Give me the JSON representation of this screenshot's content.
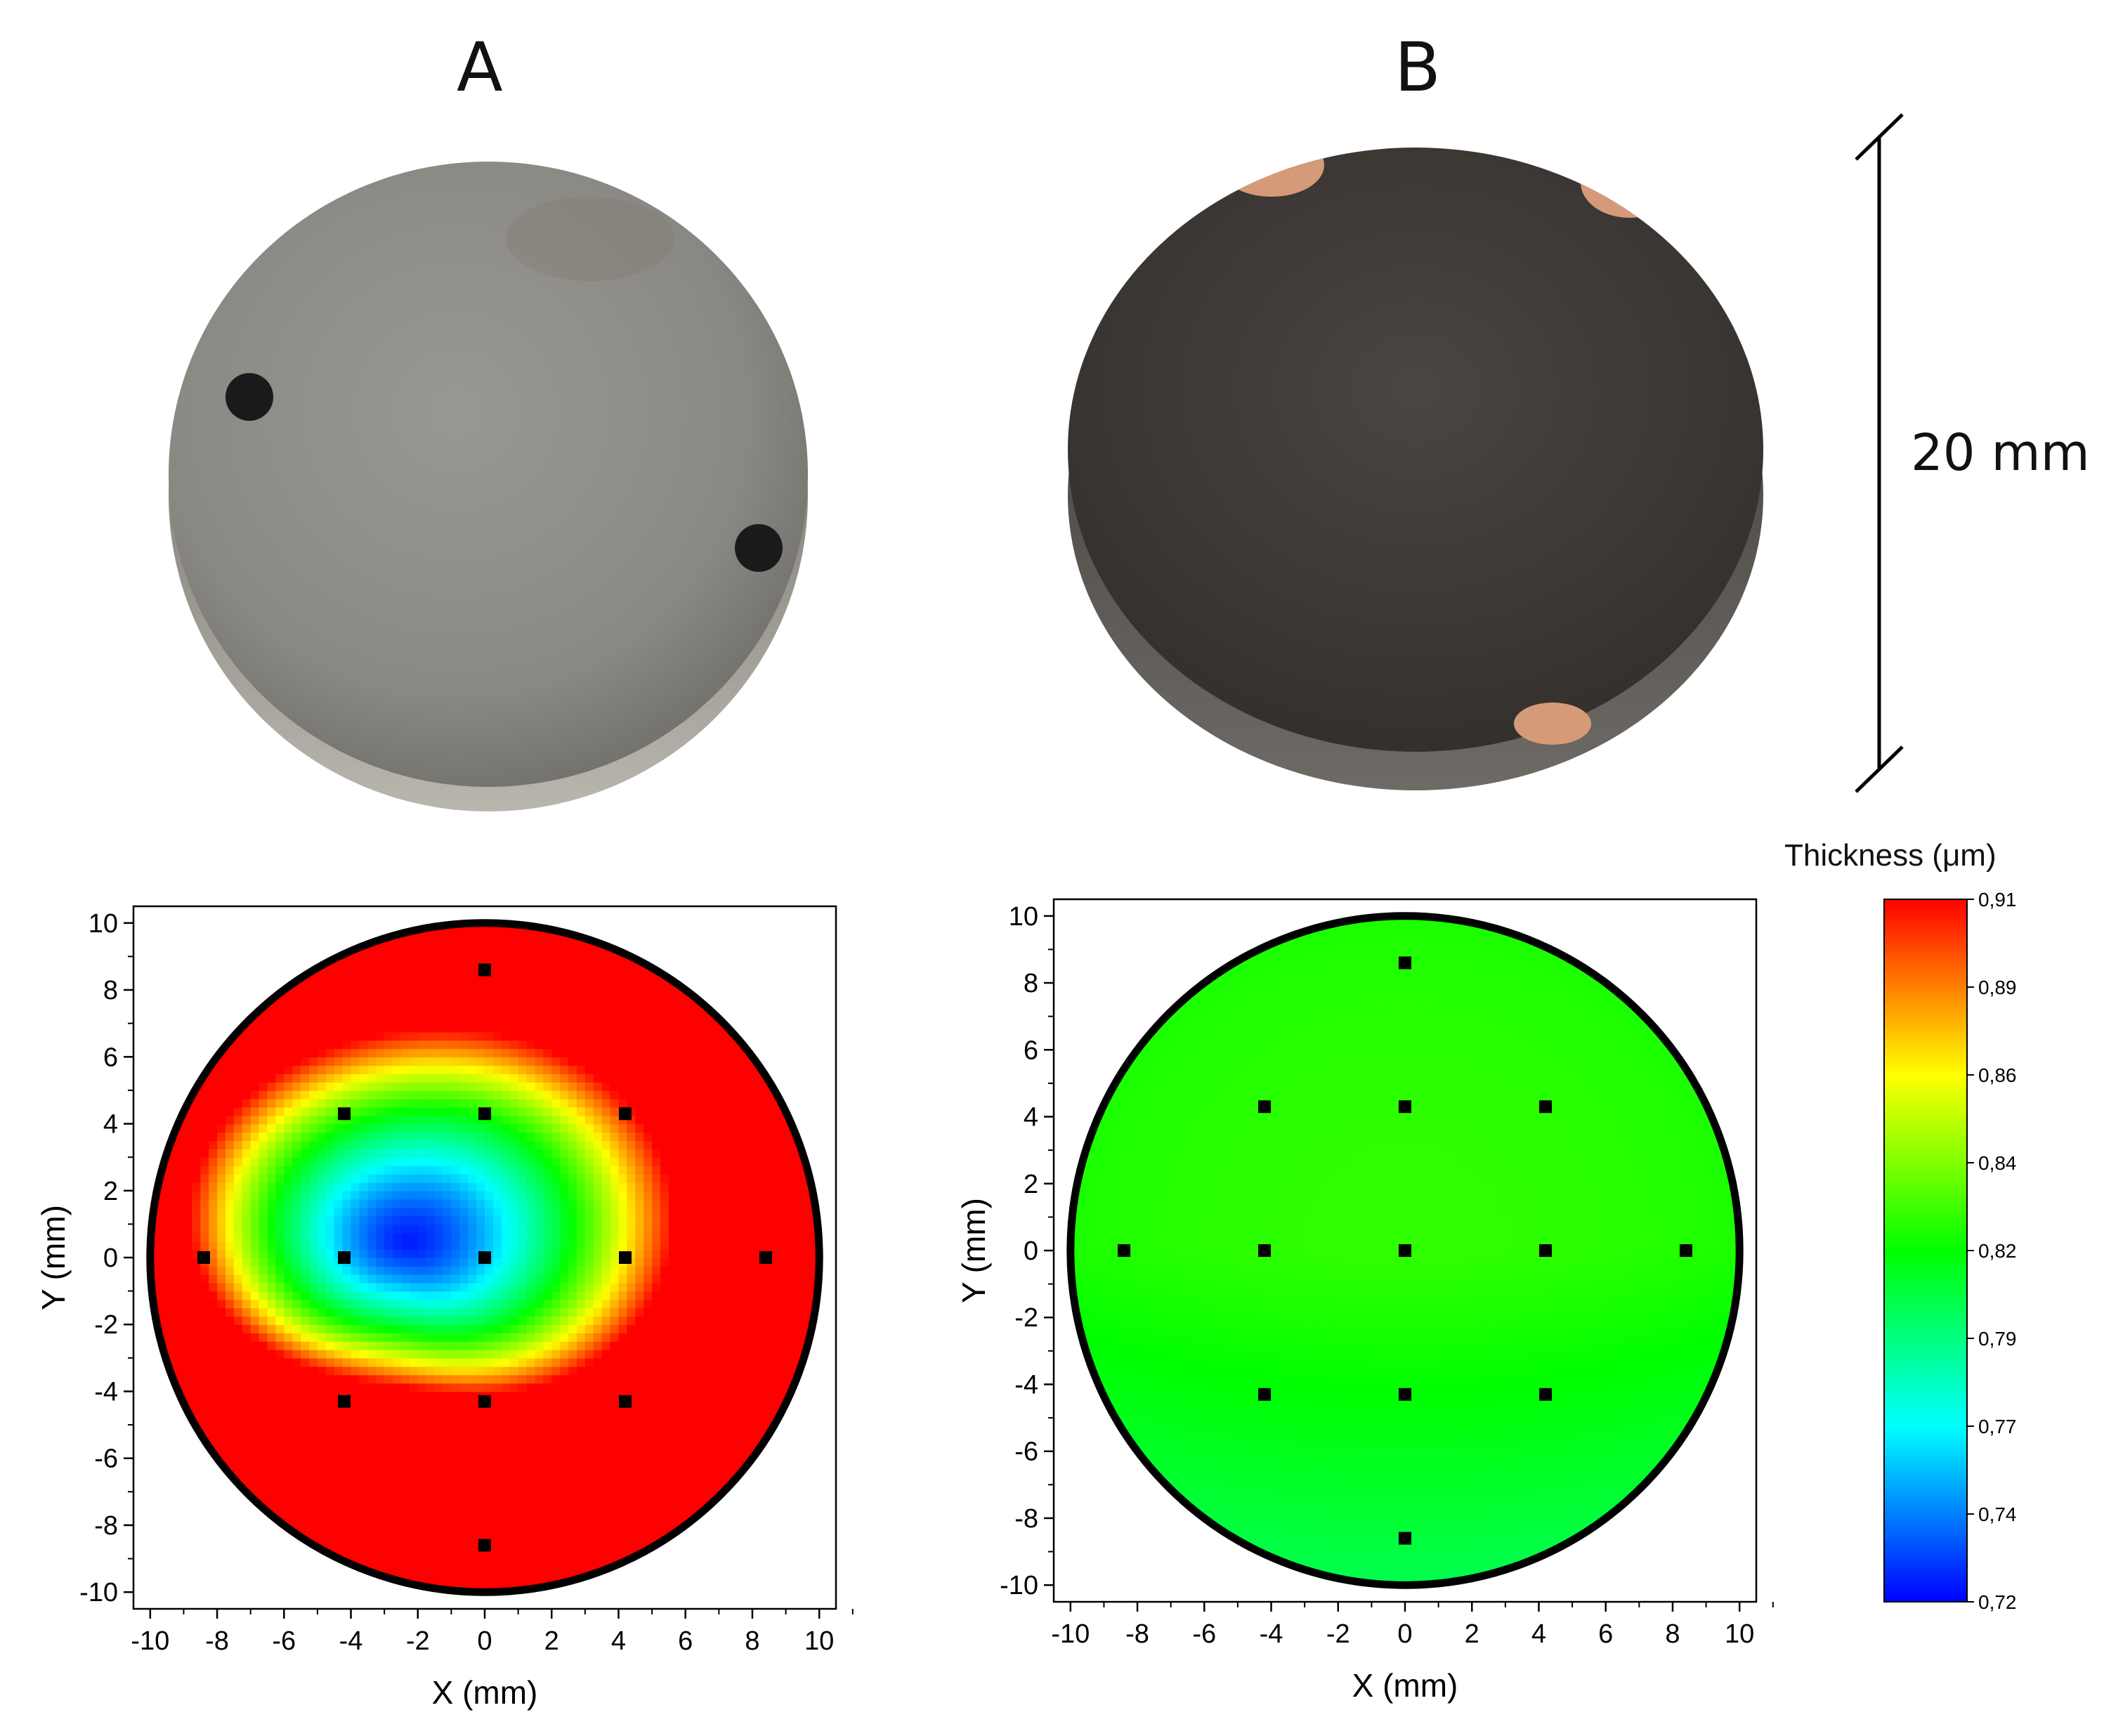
{
  "panels": [
    {
      "label": "A"
    },
    {
      "label": "B"
    }
  ],
  "scale_bar": {
    "label": "20 mm"
  },
  "colorbar": {
    "title": "Thickness  (μm)",
    "ticks": [
      "0,91",
      "0,89",
      "0,86",
      "0,84",
      "0,82",
      "0,79",
      "0,77",
      "0,74",
      "0,72"
    ],
    "range": [
      0.72,
      0.91
    ],
    "colors": [
      "#0000ff",
      "#0080ff",
      "#00ffff",
      "#00ff80",
      "#00ff00",
      "#80ff00",
      "#ffff00",
      "#ff8000",
      "#ff0000"
    ]
  },
  "photo_colors": {
    "sample_a_face": "#8e8c86",
    "sample_b_face": "#47423e",
    "copper_spot": "#d59a78"
  },
  "chart_data": [
    {
      "type": "heatmap",
      "panel": "A",
      "title": "",
      "xlabel": "X (mm)",
      "ylabel": "Y (mm)",
      "xlim": [
        -10.5,
        10.5
      ],
      "ylim": [
        -10.5,
        10.5
      ],
      "xticks": [
        "-10",
        "-8",
        "-6",
        "-4",
        "-2",
        "0",
        "2",
        "4",
        "6",
        "8",
        "10"
      ],
      "yticks": [
        "10",
        "8",
        "6",
        "4",
        "2",
        "0",
        "-2",
        "-4",
        "-6",
        "-8",
        "-10"
      ],
      "disc_radius": 10,
      "measurement_points": [
        {
          "x": 0,
          "y": 8.6
        },
        {
          "x": -4.2,
          "y": 4.3
        },
        {
          "x": 0,
          "y": 4.3
        },
        {
          "x": 4.2,
          "y": 4.3
        },
        {
          "x": -8.4,
          "y": 0
        },
        {
          "x": -4.2,
          "y": 0
        },
        {
          "x": 0,
          "y": 0
        },
        {
          "x": 4.2,
          "y": 0
        },
        {
          "x": 8.4,
          "y": 0
        },
        {
          "x": -4.2,
          "y": -4.3
        },
        {
          "x": 0,
          "y": -4.3
        },
        {
          "x": 4.2,
          "y": -4.3
        },
        {
          "x": 0,
          "y": -8.6
        }
      ],
      "thickness_model": {
        "background": 0.91,
        "min": 0.725,
        "min_x": -2.3,
        "min_y": 0.5
      },
      "legend": "none",
      "grid": false
    },
    {
      "type": "heatmap",
      "panel": "B",
      "title": "",
      "xlabel": "X (mm)",
      "ylabel": "Y (mm)",
      "xlim": [
        -10.5,
        10.5
      ],
      "ylim": [
        -10.5,
        10.5
      ],
      "xticks": [
        "-10",
        "-8",
        "-6",
        "-4",
        "-2",
        "0",
        "2",
        "4",
        "6",
        "8",
        "10"
      ],
      "yticks": [
        "10",
        "8",
        "6",
        "4",
        "2",
        "0",
        "-2",
        "-4",
        "-6",
        "-8",
        "-10"
      ],
      "disc_radius": 10,
      "measurement_points": [
        {
          "x": 0,
          "y": 8.6
        },
        {
          "x": -4.2,
          "y": 4.3
        },
        {
          "x": 0,
          "y": 4.3
        },
        {
          "x": 4.2,
          "y": 4.3
        },
        {
          "x": -8.4,
          "y": 0
        },
        {
          "x": -4.2,
          "y": 0
        },
        {
          "x": 0,
          "y": 0
        },
        {
          "x": 4.2,
          "y": 0
        },
        {
          "x": 8.4,
          "y": 0
        },
        {
          "x": -4.2,
          "y": -4.3
        },
        {
          "x": 0,
          "y": -4.3
        },
        {
          "x": 4.2,
          "y": -4.3
        },
        {
          "x": 0,
          "y": -8.6
        }
      ],
      "thickness_model": {
        "center": 0.82,
        "bottom": 0.8
      },
      "legend": "none",
      "grid": false
    }
  ]
}
